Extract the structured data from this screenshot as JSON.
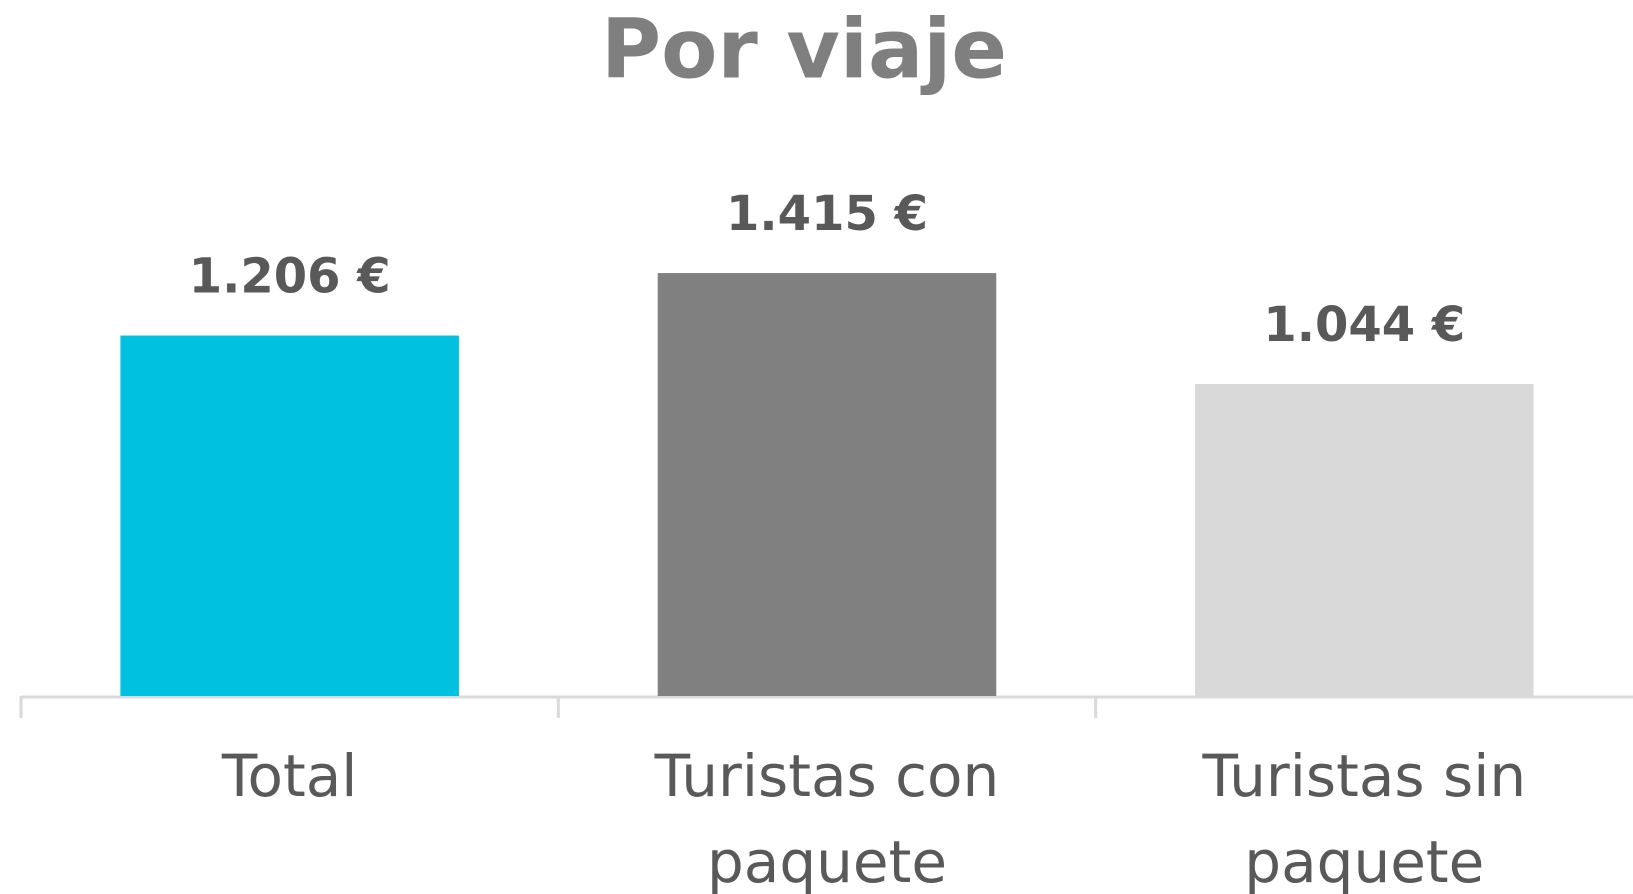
{
  "chart_data": {
    "type": "bar",
    "title": "Por viaje",
    "categories": [
      "Total",
      "Turistas con paquete",
      "Turistas sin paquete"
    ],
    "values": [
      1206,
      1415,
      1044
    ],
    "value_labels": [
      "1.206 €",
      "1.415 €",
      "1.044 €"
    ],
    "colors": [
      "#00c2e0",
      "#808080",
      "#d9d9d9"
    ],
    "ylim": [
      0,
      1800
    ]
  }
}
